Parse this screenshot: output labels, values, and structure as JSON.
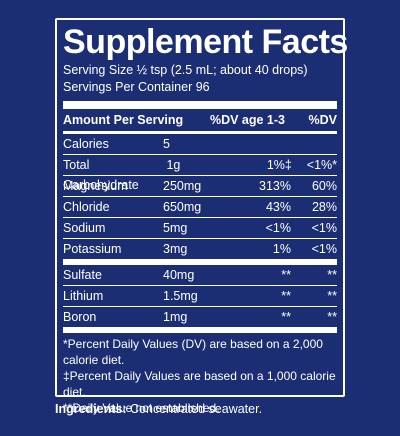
{
  "title": "Supplement Facts",
  "serving_size": "Serving Size ½ tsp (2.5 mL; about 40 drops)",
  "servings_per_container": "Servings Per Container 96",
  "header": {
    "amount": "Amount Per Serving",
    "dv_child": "%DV age 1-3",
    "dv": "%DV"
  },
  "rows": [
    {
      "name": "Calories",
      "amount": "5",
      "dv_child": "",
      "dv": ""
    },
    {
      "name": "Total Carbohydrate",
      "amount": "1g",
      "dv_child": "1%‡",
      "dv": "<1%*"
    },
    {
      "name": "Magnesium",
      "amount": "250mg",
      "dv_child": "313%",
      "dv": "60%"
    },
    {
      "name": "Chloride",
      "amount": "650mg",
      "dv_child": "43%",
      "dv": "28%"
    },
    {
      "name": "Sodium",
      "amount": "5mg",
      "dv_child": "<1%",
      "dv": "<1%"
    },
    {
      "name": "Potassium",
      "amount": "3mg",
      "dv_child": "1%",
      "dv": "<1%"
    }
  ],
  "rows2": [
    {
      "name": "Sulfate",
      "amount": "40mg",
      "dv_child": "**",
      "dv": "**"
    },
    {
      "name": "Lithium",
      "amount": "1.5mg",
      "dv_child": "**",
      "dv": "**"
    },
    {
      "name": "Boron",
      "amount": "1mg",
      "dv_child": "**",
      "dv": "**"
    }
  ],
  "footnotes": [
    "*Percent Daily Values (DV) are based on a 2,000 calorie diet.",
    "‡Percent Daily Values are based on a 1,000 calorie diet.",
    "**Daily Value not established."
  ],
  "ingredients": {
    "label": "Ingredients:",
    "text": " Concentrated seawater."
  }
}
